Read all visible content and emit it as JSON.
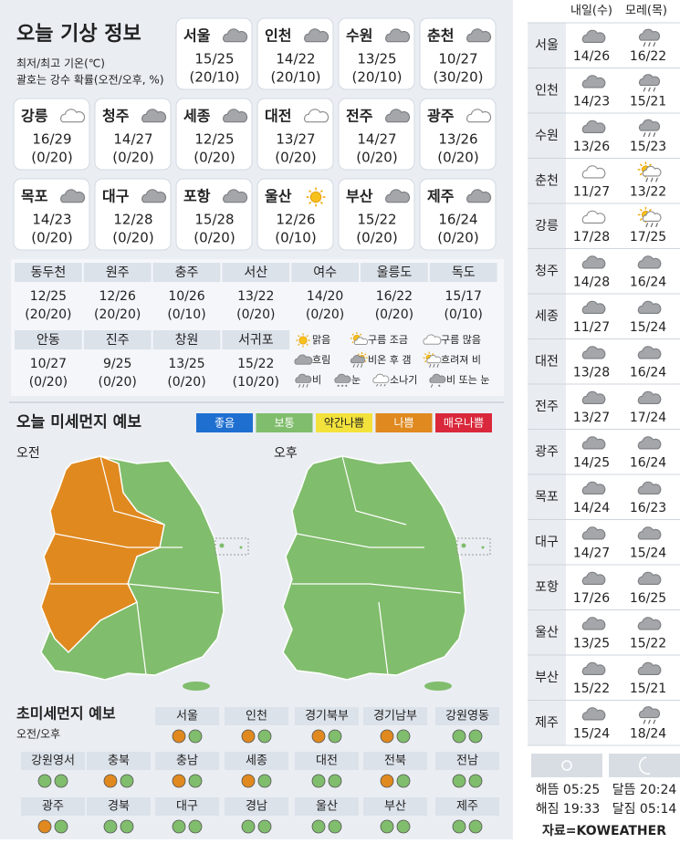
{
  "title": "오늘 기상 정보",
  "notes": [
    "최저/최고 기온(℃)",
    "괄호는 강수 확률(오전/오후, %)"
  ],
  "cards": [
    {
      "city": "서울",
      "icon": "흐림",
      "temp": "15/25",
      "rain": "(20/10)"
    },
    {
      "city": "인천",
      "icon": "흐림",
      "temp": "14/22",
      "rain": "(20/10)"
    },
    {
      "city": "수원",
      "icon": "흐림",
      "temp": "13/25",
      "rain": "(20/10)"
    },
    {
      "city": "춘천",
      "icon": "흐림",
      "temp": "10/27",
      "rain": "(30/20)"
    },
    {
      "city": "강릉",
      "icon": "구름 많음",
      "temp": "16/29",
      "rain": "(0/20)"
    },
    {
      "city": "청주",
      "icon": "흐림",
      "temp": "14/27",
      "rain": "(0/20)"
    },
    {
      "city": "세종",
      "icon": "흐림",
      "temp": "12/25",
      "rain": "(0/20)"
    },
    {
      "city": "대전",
      "icon": "구름 많음",
      "temp": "13/27",
      "rain": "(0/20)"
    },
    {
      "city": "전주",
      "icon": "흐림",
      "temp": "14/27",
      "rain": "(0/20)"
    },
    {
      "city": "광주",
      "icon": "구름 많음",
      "temp": "13/26",
      "rain": "(0/20)"
    },
    {
      "city": "목포",
      "icon": "흐림",
      "temp": "14/23",
      "rain": "(0/20)"
    },
    {
      "city": "대구",
      "icon": "흐림",
      "temp": "12/28",
      "rain": "(0/20)"
    },
    {
      "city": "포항",
      "icon": "흐림",
      "temp": "15/28",
      "rain": "(0/20)"
    },
    {
      "city": "울산",
      "icon": "맑음",
      "temp": "12/26",
      "rain": "(0/10)"
    },
    {
      "city": "부산",
      "icon": "흐림",
      "temp": "15/22",
      "rain": "(0/20)"
    },
    {
      "city": "제주",
      "icon": "흐림",
      "temp": "16/24",
      "rain": "(0/20)"
    }
  ],
  "small_cities": [
    {
      "city": "동두천",
      "temp": "12/25",
      "rain": "(20/20)"
    },
    {
      "city": "원주",
      "temp": "12/26",
      "rain": "(20/20)"
    },
    {
      "city": "충주",
      "temp": "10/26",
      "rain": "(0/10)"
    },
    {
      "city": "서산",
      "temp": "13/22",
      "rain": "(0/20)"
    },
    {
      "city": "여수",
      "temp": "14/20",
      "rain": "(0/20)"
    },
    {
      "city": "울릉도",
      "temp": "16/22",
      "rain": "(0/20)"
    },
    {
      "city": "독도",
      "temp": "15/17",
      "rain": "(0/10)"
    },
    {
      "city": "안동",
      "temp": "10/27",
      "rain": "(0/20)"
    },
    {
      "city": "진주",
      "temp": "9/25",
      "rain": "(0/20)"
    },
    {
      "city": "창원",
      "temp": "13/25",
      "rain": "(0/20)"
    },
    {
      "city": "서귀포",
      "temp": "15/22",
      "rain": "(10/20)"
    }
  ],
  "weather_legend": [
    "맑음",
    "구름 조금",
    "구름 많음",
    "흐림",
    "비온 후 갬",
    "흐려져 비",
    "비",
    "눈",
    "소나기",
    "비 또는 눈"
  ],
  "dust": {
    "title": "오늘 미세먼지 예보",
    "am_label": "오전",
    "pm_label": "오후",
    "levels": [
      {
        "label": "좋음",
        "color": "#1f6fd1"
      },
      {
        "label": "보통",
        "color": "#80bd6c"
      },
      {
        "label": "약간나쁨",
        "color": "#f3e23c"
      },
      {
        "label": "나쁨",
        "color": "#e0891f"
      },
      {
        "label": "매우나쁨",
        "color": "#d9283b"
      }
    ]
  },
  "fine_dust": {
    "title": "초미세먼지 예보",
    "subtitle": "오전/오후",
    "regions": [
      {
        "name": "서울",
        "am": "나쁨",
        "pm": "보통"
      },
      {
        "name": "인천",
        "am": "나쁨",
        "pm": "보통"
      },
      {
        "name": "경기북부",
        "am": "나쁨",
        "pm": "보통"
      },
      {
        "name": "경기남부",
        "am": "나쁨",
        "pm": "보통"
      },
      {
        "name": "강원영동",
        "am": "보통",
        "pm": "보통"
      },
      {
        "name": "강원영서",
        "am": "보통",
        "pm": "보통"
      },
      {
        "name": "충북",
        "am": "나쁨",
        "pm": "보통"
      },
      {
        "name": "충남",
        "am": "나쁨",
        "pm": "보통"
      },
      {
        "name": "세종",
        "am": "나쁨",
        "pm": "보통"
      },
      {
        "name": "대전",
        "am": "보통",
        "pm": "보통"
      },
      {
        "name": "전북",
        "am": "나쁨",
        "pm": "보통"
      },
      {
        "name": "전남",
        "am": "보통",
        "pm": "보통"
      },
      {
        "name": "광주",
        "am": "나쁨",
        "pm": "보통"
      },
      {
        "name": "경북",
        "am": "보통",
        "pm": "보통"
      },
      {
        "name": "대구",
        "am": "보통",
        "pm": "보통"
      },
      {
        "name": "경남",
        "am": "보통",
        "pm": "보통"
      },
      {
        "name": "울산",
        "am": "보통",
        "pm": "보통"
      },
      {
        "name": "부산",
        "am": "보통",
        "pm": "보통"
      },
      {
        "name": "제주",
        "am": "보통",
        "pm": "보통"
      }
    ]
  },
  "forecast": {
    "headers": [
      "내일(수)",
      "모레(목)"
    ],
    "rows": [
      {
        "city": "서울",
        "day1_icon": "흐림",
        "day1": "14/26",
        "day2_icon": "비",
        "day2": "16/22"
      },
      {
        "city": "인천",
        "day1_icon": "흐림",
        "day1": "14/23",
        "day2_icon": "비",
        "day2": "15/21"
      },
      {
        "city": "수원",
        "day1_icon": "흐림",
        "day1": "13/26",
        "day2_icon": "비",
        "day2": "15/23"
      },
      {
        "city": "춘천",
        "day1_icon": "구름 많음",
        "day1": "11/27",
        "day2_icon": "흐려져 비",
        "day2": "13/22"
      },
      {
        "city": "강릉",
        "day1_icon": "구름 많음",
        "day1": "17/28",
        "day2_icon": "흐려져 비",
        "day2": "17/25"
      },
      {
        "city": "청주",
        "day1_icon": "흐림",
        "day1": "14/28",
        "day2_icon": "흐림",
        "day2": "16/24"
      },
      {
        "city": "세종",
        "day1_icon": "흐림",
        "day1": "11/27",
        "day2_icon": "흐림",
        "day2": "15/24"
      },
      {
        "city": "대전",
        "day1_icon": "흐림",
        "day1": "13/28",
        "day2_icon": "흐림",
        "day2": "16/24"
      },
      {
        "city": "전주",
        "day1_icon": "흐림",
        "day1": "13/27",
        "day2_icon": "흐림",
        "day2": "17/24"
      },
      {
        "city": "광주",
        "day1_icon": "흐림",
        "day1": "14/25",
        "day2_icon": "흐림",
        "day2": "16/24"
      },
      {
        "city": "목포",
        "day1_icon": "흐림",
        "day1": "14/24",
        "day2_icon": "흐림",
        "day2": "16/23"
      },
      {
        "city": "대구",
        "day1_icon": "흐림",
        "day1": "14/27",
        "day2_icon": "흐림",
        "day2": "15/24"
      },
      {
        "city": "포항",
        "day1_icon": "흐림",
        "day1": "17/26",
        "day2_icon": "흐림",
        "day2": "16/25"
      },
      {
        "city": "울산",
        "day1_icon": "흐림",
        "day1": "13/25",
        "day2_icon": "흐림",
        "day2": "15/22"
      },
      {
        "city": "부산",
        "day1_icon": "흐림",
        "day1": "15/22",
        "day2_icon": "흐림",
        "day2": "15/21"
      },
      {
        "city": "제주",
        "day1_icon": "흐림",
        "day1": "15/24",
        "day2_icon": "비",
        "day2": "18/24"
      }
    ]
  },
  "sun_moon": {
    "sunrise": "해뜸 05:25",
    "sunset": "해짐 19:33",
    "moonrise": "달뜸 20:24",
    "moonset": "달짐 05:14"
  },
  "source": "자료=KOWEATHER"
}
